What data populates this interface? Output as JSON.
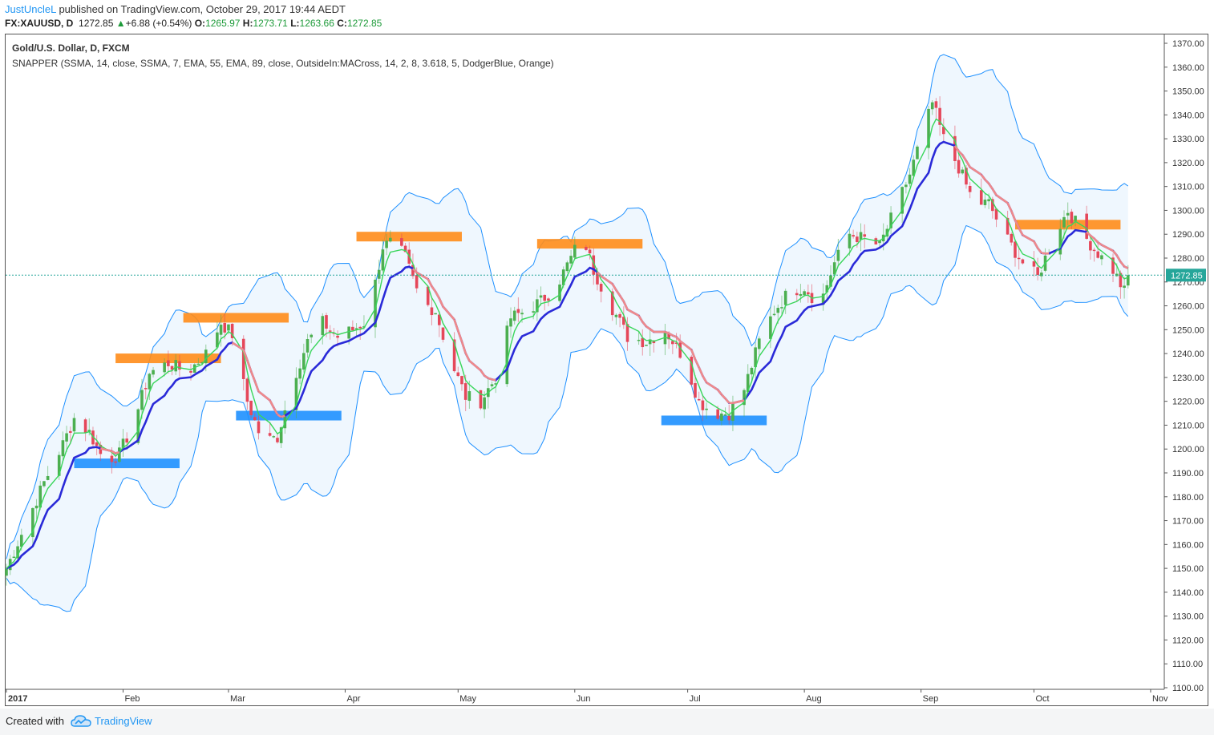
{
  "header": {
    "author": "JustUncleL",
    "published_text": " published on TradingView.com, October 29, 2017 19:44 AEDT"
  },
  "quote": {
    "symbol": "FX:XAUUSD, D",
    "price": "1272.85",
    "change": "+6.88 (+0.54%)",
    "open_label": "O:",
    "open": "1265.97",
    "high_label": "H:",
    "high": "1273.71",
    "low_label": "L:",
    "low": "1263.66",
    "close_label": "C:",
    "close": "1272.85"
  },
  "legend": {
    "title": "Gold/U.S. Dollar, D, FXCM",
    "indicator": "SNAPPER (SSMA, 14, close, SSMA, 7, EMA, 55, EMA, 89, close, OutsideIn:MACross, 14, 2, 8, 3.618, 5, DodgerBlue, Orange)"
  },
  "footer": {
    "created_with": "Created with",
    "brand": "TradingView"
  },
  "colors": {
    "up": "#4caf50",
    "down": "#e5475a",
    "slow_ma": "#2a2ad8",
    "fast_ma": "#39d65a",
    "down_ma": "#f08a8a",
    "band": "#1e90ff",
    "resistance": "#ff8c1a",
    "support": "#1e90ff",
    "price_line": "#26a69a"
  },
  "chart_data": {
    "type": "candlestick",
    "ylim": [
      1100,
      1370
    ],
    "yticks": [
      "1370.00",
      "1360.00",
      "1350.00",
      "1340.00",
      "1330.00",
      "1320.00",
      "1310.00",
      "1300.00",
      "1290.00",
      "1280.00",
      "1270.00",
      "1260.00",
      "1250.00",
      "1240.00",
      "1230.00",
      "1220.00",
      "1210.00",
      "1200.00",
      "1190.00",
      "1180.00",
      "1170.00",
      "1160.00",
      "1150.00",
      "1140.00",
      "1130.00",
      "1120.00",
      "1110.00",
      "1100.00"
    ],
    "x_labels": [
      "2017",
      "Feb",
      "Mar",
      "Apr",
      "May",
      "Jun",
      "Jul",
      "Aug",
      "Sep",
      "Oct",
      "Nov"
    ],
    "x_label_days": [
      0,
      31,
      59,
      90,
      120,
      151,
      181,
      212,
      243,
      273,
      304
    ],
    "last_price": 1272.85,
    "last_price_label": "1272.85",
    "close_waypoints": [
      [
        0,
        1150
      ],
      [
        5,
        1168
      ],
      [
        10,
        1186
      ],
      [
        15,
        1202
      ],
      [
        18,
        1213
      ],
      [
        22,
        1207
      ],
      [
        26,
        1195
      ],
      [
        30,
        1198
      ],
      [
        34,
        1212
      ],
      [
        38,
        1232
      ],
      [
        43,
        1236
      ],
      [
        48,
        1232
      ],
      [
        53,
        1240
      ],
      [
        57,
        1253
      ],
      [
        60,
        1248
      ],
      [
        64,
        1220
      ],
      [
        68,
        1203
      ],
      [
        72,
        1205
      ],
      [
        76,
        1228
      ],
      [
        80,
        1245
      ],
      [
        84,
        1253
      ],
      [
        88,
        1247
      ],
      [
        92,
        1250
      ],
      [
        96,
        1254
      ],
      [
        100,
        1285
      ],
      [
        103,
        1287
      ],
      [
        106,
        1280
      ],
      [
        110,
        1262
      ],
      [
        114,
        1258
      ],
      [
        118,
        1237
      ],
      [
        122,
        1222
      ],
      [
        126,
        1220
      ],
      [
        130,
        1230
      ],
      [
        134,
        1255
      ],
      [
        138,
        1258
      ],
      [
        142,
        1262
      ],
      [
        146,
        1268
      ],
      [
        150,
        1280
      ],
      [
        153,
        1290
      ],
      [
        156,
        1275
      ],
      [
        160,
        1262
      ],
      [
        165,
        1247
      ],
      [
        170,
        1245
      ],
      [
        175,
        1250
      ],
      [
        180,
        1238
      ],
      [
        184,
        1220
      ],
      [
        188,
        1215
      ],
      [
        192,
        1215
      ],
      [
        196,
        1225
      ],
      [
        200,
        1245
      ],
      [
        204,
        1258
      ],
      [
        208,
        1266
      ],
      [
        212,
        1268
      ],
      [
        216,
        1260
      ],
      [
        220,
        1278
      ],
      [
        224,
        1290
      ],
      [
        228,
        1288
      ],
      [
        232,
        1285
      ],
      [
        236,
        1300
      ],
      [
        240,
        1315
      ],
      [
        243,
        1330
      ],
      [
        246,
        1345
      ],
      [
        249,
        1330
      ],
      [
        253,
        1318
      ],
      [
        257,
        1303
      ],
      [
        261,
        1303
      ],
      [
        265,
        1290
      ],
      [
        270,
        1278
      ],
      [
        274,
        1272
      ],
      [
        278,
        1288
      ],
      [
        282,
        1300
      ],
      [
        286,
        1290
      ],
      [
        290,
        1282
      ],
      [
        294,
        1275
      ],
      [
        297,
        1266
      ],
      [
        298,
        1272.85
      ]
    ],
    "rectangles": [
      {
        "kind": "support",
        "day_start": 18,
        "day_end": 46,
        "price": 1194
      },
      {
        "kind": "resistance",
        "day_start": 29,
        "day_end": 57,
        "price": 1238
      },
      {
        "kind": "resistance",
        "day_start": 47,
        "day_end": 75,
        "price": 1255
      },
      {
        "kind": "support",
        "day_start": 61,
        "day_end": 89,
        "price": 1214
      },
      {
        "kind": "resistance",
        "day_start": 93,
        "day_end": 121,
        "price": 1289
      },
      {
        "kind": "resistance",
        "day_start": 141,
        "day_end": 169,
        "price": 1286
      },
      {
        "kind": "support",
        "day_start": 174,
        "day_end": 202,
        "price": 1212
      },
      {
        "kind": "resistance",
        "day_start": 268,
        "day_end": 296,
        "price": 1294
      }
    ]
  }
}
